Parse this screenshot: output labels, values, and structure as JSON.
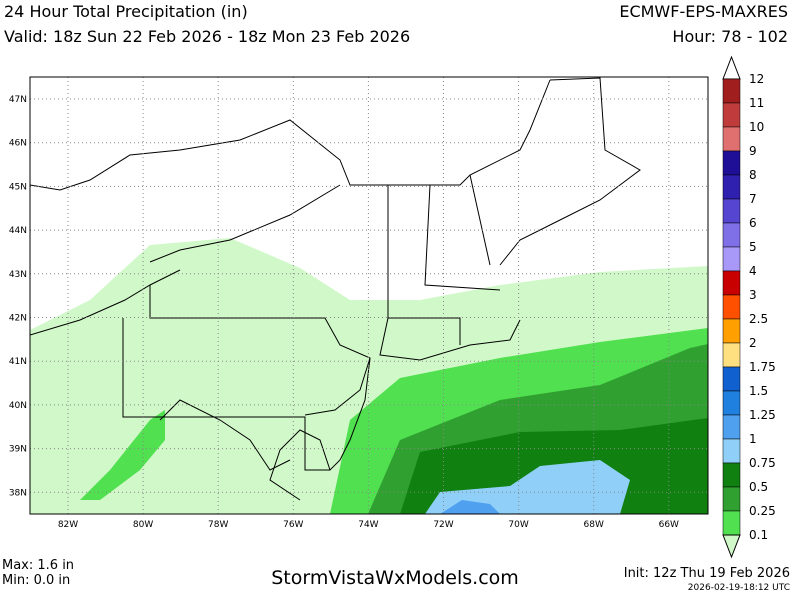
{
  "header": {
    "title": "24 Hour Total Precipitation (in)",
    "model": "ECMWF-EPS-MAXRES",
    "valid": "Valid: 18z Sun 22 Feb 2026 - 18z Mon 23 Feb 2026",
    "hour": "Hour: 78 - 102"
  },
  "map": {
    "lat_labels": [
      "47N",
      "46N",
      "45N",
      "44N",
      "43N",
      "42N",
      "41N",
      "40N",
      "39N",
      "38N"
    ],
    "lon_labels": [
      "82W",
      "80W",
      "78W",
      "76W",
      "74W",
      "72W",
      "70W",
      "68W",
      "66W"
    ]
  },
  "colorbar": {
    "labels": [
      "12",
      "11",
      "10",
      "9",
      "8",
      "7",
      "6",
      "5",
      "4",
      "3",
      "2.5",
      "2",
      "1.75",
      "1.5",
      "1.25",
      "1",
      "0.75",
      "0.5",
      "0.25",
      "0.1"
    ],
    "colors": [
      "#a01e1e",
      "#c03c3c",
      "#e07070",
      "#1e0f96",
      "#3020b0",
      "#5545d0",
      "#8070e8",
      "#a898f8",
      "#c80000",
      "#ff5000",
      "#ffa000",
      "#ffe080",
      "#1060d0",
      "#2080e0",
      "#50a0f0",
      "#90d0f8",
      "#108010",
      "#30a030",
      "#50e050",
      "#d0f8c8"
    ]
  },
  "footer": {
    "max": "Max: 1.6 in",
    "min": "Min: 0.0 in",
    "site": "StormVistaWxModels.com",
    "init": "Init: 12z Thu 19 Feb 2026",
    "timestamp": "2026-02-19-18:12 UTC"
  }
}
